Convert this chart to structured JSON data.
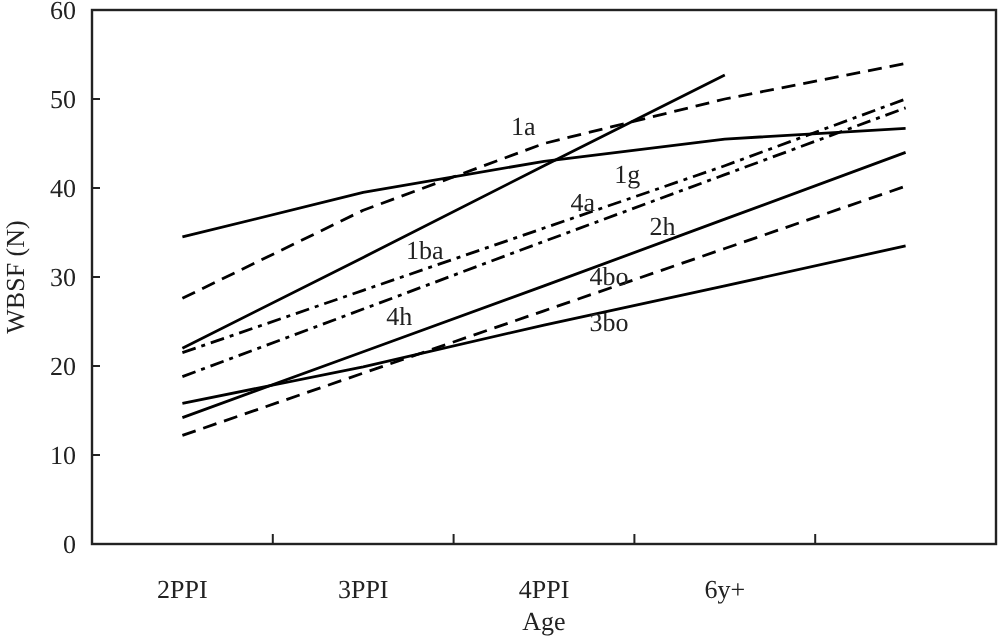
{
  "chart_data": {
    "type": "line",
    "xlabel": "Age",
    "ylabel": "WBSF (N)",
    "categories": [
      "2PPI",
      "3PPI",
      "4PPI",
      "6y+",
      null
    ],
    "ylim": [
      0,
      60
    ],
    "yticks": [
      0,
      10,
      20,
      30,
      40,
      50,
      60
    ],
    "series": [
      {
        "name": "1ba",
        "color": "#000000",
        "line_style": "solid",
        "values": [
          22,
          32.2,
          42.5,
          52.7,
          null
        ]
      },
      {
        "name": "1a",
        "color": "#000000",
        "line_style": "dashed",
        "values": [
          27.6,
          37.5,
          45,
          50,
          54
        ]
      },
      {
        "name": "1g",
        "color": "#000000",
        "line_style": "solid",
        "values": [
          34.5,
          39.5,
          43,
          45.5,
          46.7
        ]
      },
      {
        "name": "4a",
        "color": "#000000",
        "line_style": "dashdot",
        "values": [
          21.5,
          28.5,
          35.5,
          42.5,
          50
        ]
      },
      {
        "name": "4h",
        "color": "#000000",
        "line_style": "dashdot",
        "values": [
          18.8,
          26.4,
          34,
          41.5,
          49
        ]
      },
      {
        "name": "2h",
        "color": "#000000",
        "line_style": "solid",
        "values": [
          14.2,
          21.6,
          29,
          36.5,
          44
        ]
      },
      {
        "name": "4bo",
        "color": "#000000",
        "line_style": "dashed",
        "values": [
          12.2,
          19.2,
          26.2,
          33.2,
          40.2
        ]
      },
      {
        "name": "3bo",
        "color": "#000000",
        "line_style": "solid",
        "values": [
          15.8,
          19.9,
          24.6,
          29,
          33.5
        ]
      }
    ]
  }
}
